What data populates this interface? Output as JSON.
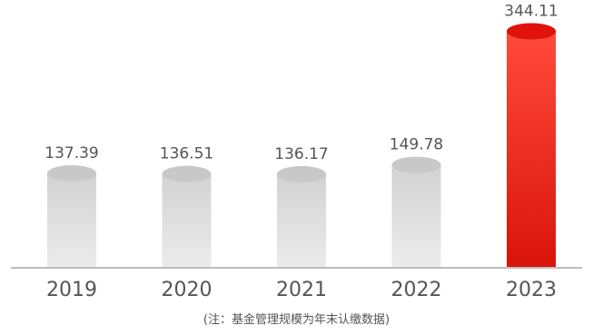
{
  "chart_data": {
    "type": "bar",
    "categories": [
      "2019",
      "2020",
      "2021",
      "2022",
      "2023"
    ],
    "values": [
      137.39,
      136.51,
      136.17,
      149.78,
      344.11
    ],
    "value_labels": [
      "137.39",
      "136.51",
      "136.17",
      "149.78",
      "344.11"
    ],
    "highlight_index": 4,
    "ylim": [
      0,
      350
    ],
    "grid": false,
    "legend": "none",
    "note": "(注：基金管理规模为年末认缴数据)"
  },
  "colors": {
    "gray_top": "#d2d2d2",
    "gray_bottom": "#ececec",
    "gray_cap": "#c8c8c8",
    "red_top": "#ff4a3a",
    "red_bottom": "#d9140a",
    "red_cap": "#e0120c",
    "axis": "#bdbdbd",
    "text": "#555555"
  }
}
